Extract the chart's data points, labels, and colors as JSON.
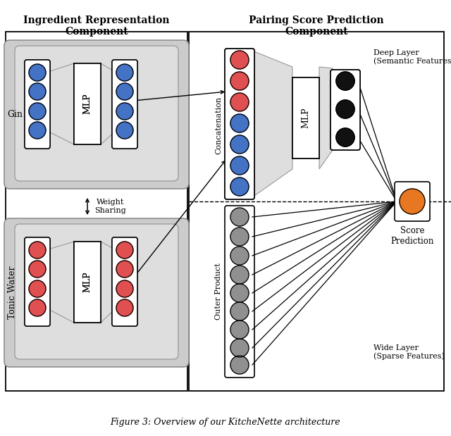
{
  "title": "Figure 3: Overview of our KitcheNette architecture",
  "left_header": "Ingredient Representation\nComponent",
  "right_header": "Pairing Score Prediction\nComponent",
  "gin_label": "Gin",
  "tonic_label": "Tonic Water",
  "weight_sharing_label": "Weight\nSharing",
  "concatenation_label": "Concatenation",
  "outer_product_label": "Outer Product",
  "mlp_label": "MLP",
  "score_label": "Score\nPrediction",
  "deep_layer_label": "Deep Layer\n(Semantic Features)",
  "wide_layer_label": "Wide Layer\n(Sparse Features)",
  "blue_color": "#4472C4",
  "red_color": "#E05050",
  "gray_color": "#909090",
  "black_color": "#111111",
  "orange_color": "#E87722",
  "trap_gray": "#C8C8C8",
  "box_inner_gray": "#DEDEDE",
  "box_outer_gray": "#CCCCCC"
}
